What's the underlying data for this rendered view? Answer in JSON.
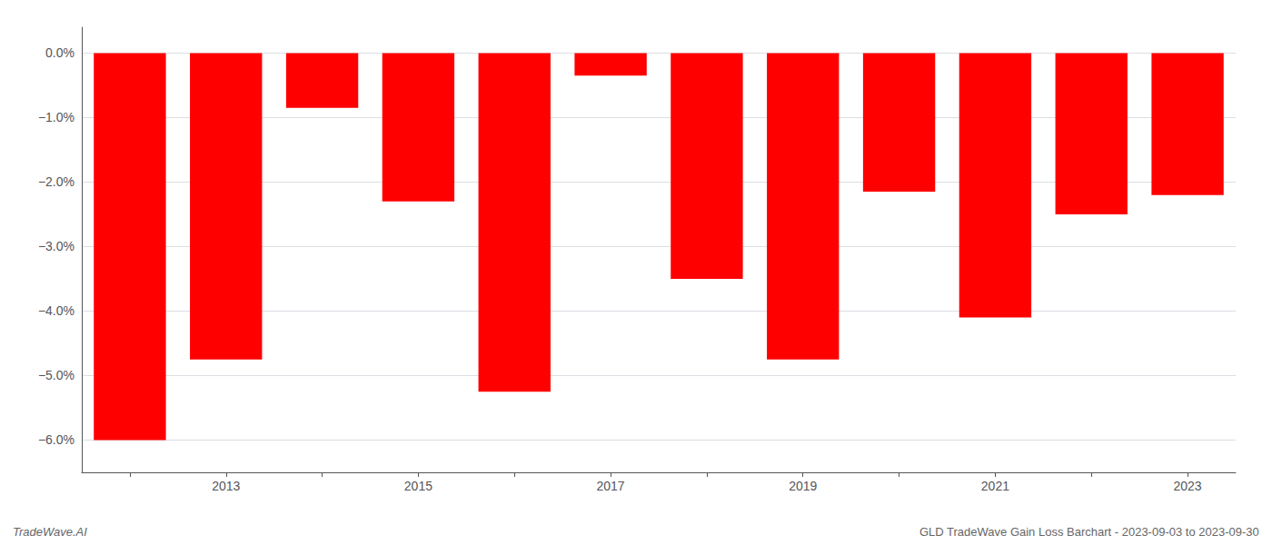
{
  "chart_data": {
    "type": "bar",
    "categories": [
      null,
      "2013",
      null,
      "2015",
      null,
      "2017",
      null,
      "2019",
      null,
      "2021",
      null,
      "2023"
    ],
    "values": [
      -6.0,
      -4.75,
      -0.85,
      -2.3,
      -5.25,
      -0.35,
      -3.5,
      -4.75,
      -2.15,
      -4.1,
      -2.5,
      -2.2
    ],
    "color": "#ff0000",
    "ylim": [
      -6.5,
      0.4
    ],
    "yticks": [
      {
        "value": 0.0,
        "label": "0.0%"
      },
      {
        "value": -1.0,
        "label": "−1.0%"
      },
      {
        "value": -2.0,
        "label": "−2.0%"
      },
      {
        "value": -3.0,
        "label": "−3.0%"
      },
      {
        "value": -4.0,
        "label": "−4.0%"
      },
      {
        "value": -5.0,
        "label": "−5.0%"
      },
      {
        "value": -6.0,
        "label": "−6.0%"
      }
    ],
    "grid": true,
    "annotations": [
      "TradeWave.AI",
      "GLD TradeWave Gain Loss Barchart - 2023-09-03 to 2023-09-30"
    ]
  }
}
